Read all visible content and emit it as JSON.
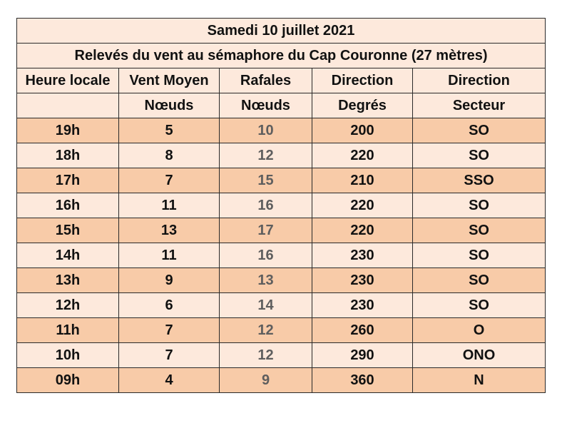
{
  "title": "Samedi 10 juillet 2021",
  "subtitle": "Relevés du vent au sémaphore du Cap Couronne (27 mètres)",
  "headers": [
    "Heure locale",
    "Vent Moyen",
    "Rafales",
    "Direction",
    "Direction"
  ],
  "units": [
    "",
    "Nœuds",
    "Nœuds",
    "Degrés",
    "Secteur"
  ],
  "rows": [
    [
      "19h",
      "5",
      "10",
      "200",
      "SO"
    ],
    [
      "18h",
      "8",
      "12",
      "220",
      "SO"
    ],
    [
      "17h",
      "7",
      "15",
      "210",
      "SSO"
    ],
    [
      "16h",
      "11",
      "16",
      "220",
      "SO"
    ],
    [
      "15h",
      "13",
      "17",
      "220",
      "SO"
    ],
    [
      "14h",
      "11",
      "16",
      "230",
      "SO"
    ],
    [
      "13h",
      "9",
      "13",
      "230",
      "SO"
    ],
    [
      "12h",
      "6",
      "14",
      "230",
      "SO"
    ],
    [
      "11h",
      "7",
      "12",
      "260",
      "O"
    ],
    [
      "10h",
      "7",
      "12",
      "290",
      "ONO"
    ],
    [
      "09h",
      "4",
      "9",
      "360",
      "N"
    ]
  ],
  "colors": {
    "row_light": "#fde9dc",
    "row_dark": "#f8cba8",
    "gust_text": "#5e5e5e",
    "border": "#2a2a2a"
  }
}
